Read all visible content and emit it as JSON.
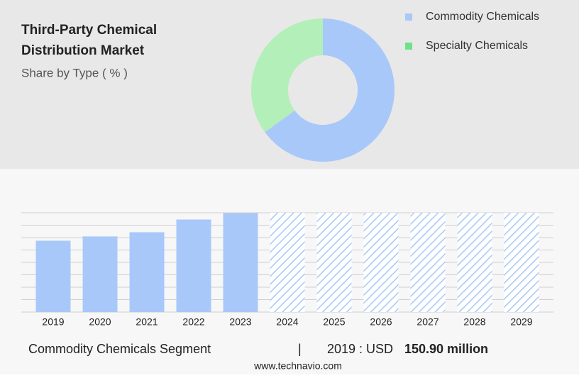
{
  "chart_data": [
    {
      "type": "donut",
      "title": "Third-Party Chemical Distribution Market",
      "subtitle": "Share by Type ( % )",
      "categories": [
        "Commodity Chemicals",
        "Specialty Chemicals"
      ],
      "values": [
        65,
        35
      ],
      "colors": [
        "#a8c8fa",
        "#b3efb8"
      ],
      "legend_colors": [
        "#a8c8fa",
        "#6fe08c"
      ]
    },
    {
      "type": "bar",
      "categories": [
        "2019",
        "2020",
        "2021",
        "2022",
        "2023",
        "2024",
        "2025",
        "2026",
        "2027",
        "2028",
        "2029"
      ],
      "values": [
        150.9,
        159.9,
        168.8,
        195.7,
        209.2,
        null,
        null,
        null,
        null,
        null,
        null
      ],
      "color": "#a8c8fa",
      "ylim": [
        0,
        210
      ],
      "yticks": [
        0,
        26.25,
        52.5,
        78.75,
        105,
        131.25,
        157.5,
        183.75,
        210
      ],
      "grid": true,
      "footer": {
        "segment": "Commodity Chemicals Segment",
        "separator": "|",
        "year_label": "2019 : USD",
        "amount": "150.90 million"
      },
      "source": "www.technavio.com"
    }
  ]
}
